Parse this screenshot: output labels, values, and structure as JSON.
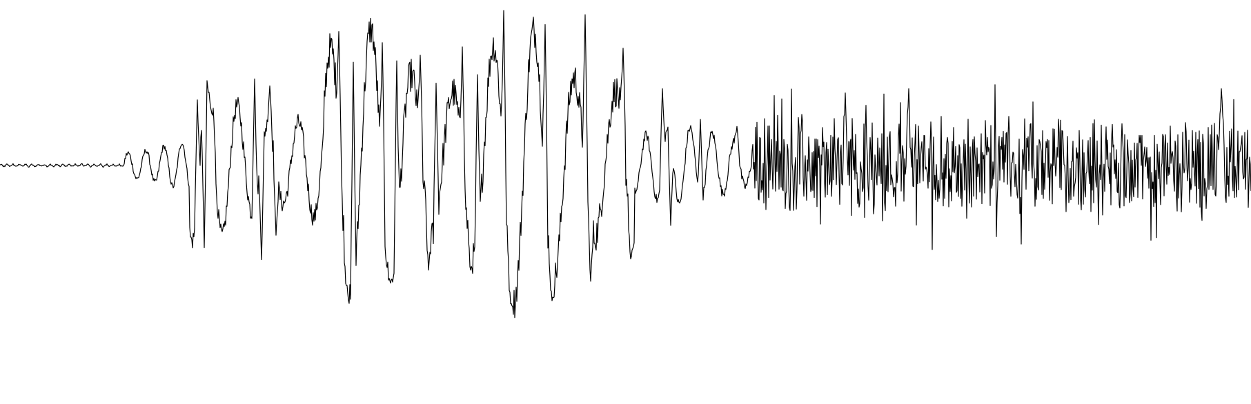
{
  "chart_data": {
    "type": "line",
    "title": "",
    "xlabel": "",
    "ylabel": "",
    "axes_visible": false,
    "grid": false,
    "legend": "none",
    "xlim": [
      0,
      1813
    ],
    "ylim": [
      -250,
      250
    ],
    "line_color": "#000000",
    "background_color": "#ffffff",
    "series": [
      {
        "name": "",
        "envelope_segments": [
          {
            "x_start": 0,
            "x_end": 180,
            "amplitude": 3,
            "period": 9,
            "kind": "quiet"
          },
          {
            "x_start": 180,
            "x_end": 275,
            "amplitude": 35,
            "period": 26,
            "kind": "onset"
          },
          {
            "x_start": 275,
            "x_end": 470,
            "amplitude": 110,
            "period": 44,
            "kind": "oscillation"
          },
          {
            "x_start": 470,
            "x_end": 920,
            "amplitude": 200,
            "period": 59,
            "kind": "oscillation"
          },
          {
            "x_start": 920,
            "x_end": 1090,
            "amplitude": 55,
            "period": 32,
            "kind": "decay"
          },
          {
            "x_start": 1090,
            "x_end": 1813,
            "amplitude": 75,
            "period": 3,
            "kind": "noise"
          }
        ],
        "peaks": [
          {
            "x": 286,
            "y": 94
          },
          {
            "x": 296,
            "y": -118
          },
          {
            "x": 309,
            "y": 82
          },
          {
            "x": 369,
            "y": 124
          },
          {
            "x": 379,
            "y": -135
          },
          {
            "x": 391,
            "y": 114
          },
          {
            "x": 400,
            "y": -100
          },
          {
            "x": 491,
            "y": 192
          },
          {
            "x": 502,
            "y": -172
          },
          {
            "x": 512,
            "y": 148
          },
          {
            "x": 554,
            "y": 176
          },
          {
            "x": 565,
            "y": -165
          },
          {
            "x": 575,
            "y": 150
          },
          {
            "x": 609,
            "y": 158
          },
          {
            "x": 621,
            "y": -150
          },
          {
            "x": 632,
            "y": 118
          },
          {
            "x": 670,
            "y": 170
          },
          {
            "x": 682,
            "y": -150
          },
          {
            "x": 692,
            "y": 130
          },
          {
            "x": 730,
            "y": 222
          },
          {
            "x": 741,
            "y": -198
          },
          {
            "x": 790,
            "y": 202
          },
          {
            "x": 800,
            "y": -194
          },
          {
            "x": 848,
            "y": 216
          },
          {
            "x": 856,
            "y": -166
          },
          {
            "x": 903,
            "y": 168
          },
          {
            "x": 914,
            "y": -134
          },
          {
            "x": 960,
            "y": 110
          },
          {
            "x": 972,
            "y": -86
          },
          {
            "x": 1015,
            "y": 66
          },
          {
            "x": 1068,
            "y": 56
          },
          {
            "x": 1225,
            "y": 104
          },
          {
            "x": 1317,
            "y": 110
          },
          {
            "x": 1770,
            "y": 110
          }
        ]
      }
    ]
  }
}
